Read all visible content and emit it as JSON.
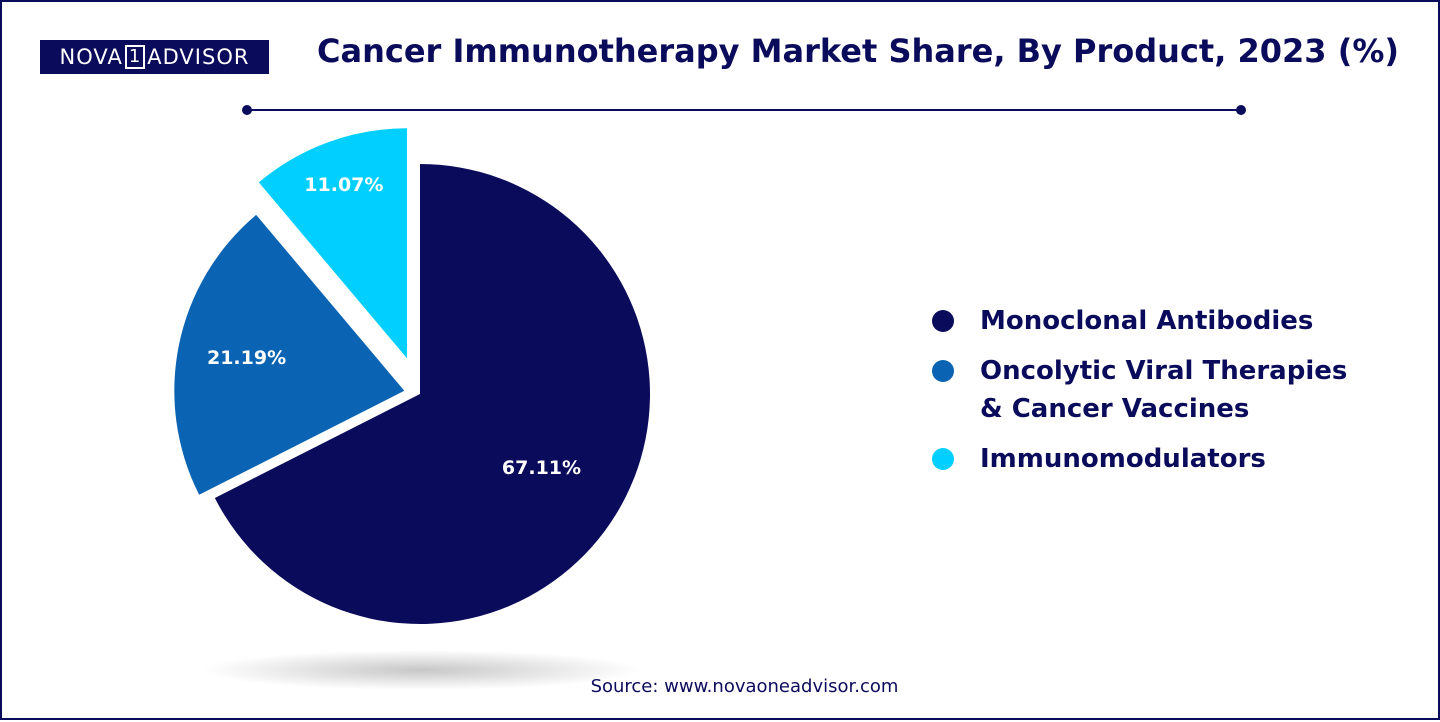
{
  "logo": {
    "part1": "NOVA",
    "part2": "1",
    "part3": "ADVISOR"
  },
  "title": "Cancer Immunotherapy Market Share, By Product, 2023 (%)",
  "source": "Source: www.novaoneadvisor.com",
  "colors": {
    "navy": "#0b0b5c",
    "blue": "#0a63b3",
    "cyan": "#00cfff"
  },
  "chart_data": {
    "type": "pie",
    "title": "Cancer Immunotherapy Market Share, By Product, 2023 (%)",
    "slices": [
      {
        "name": "Monoclonal Antibodies",
        "value": 67.11,
        "label": "67.11%",
        "color": "#0b0b5c"
      },
      {
        "name": "Oncolytic Viral Therapies & Cancer Vaccines",
        "value": 21.19,
        "label": "21.19%",
        "color": "#0a63b3"
      },
      {
        "name": "Immunomodulators",
        "value": 11.07,
        "label": "11.07%",
        "color": "#00cfff"
      }
    ],
    "legend_position": "right"
  },
  "legend": [
    {
      "label": "Monoclonal Antibodies",
      "color": "#0b0b5c"
    },
    {
      "label": "Oncolytic Viral Therapies & Cancer Vaccines",
      "color": "#0a63b3"
    },
    {
      "label": "Immunomodulators",
      "color": "#00cfff"
    }
  ]
}
